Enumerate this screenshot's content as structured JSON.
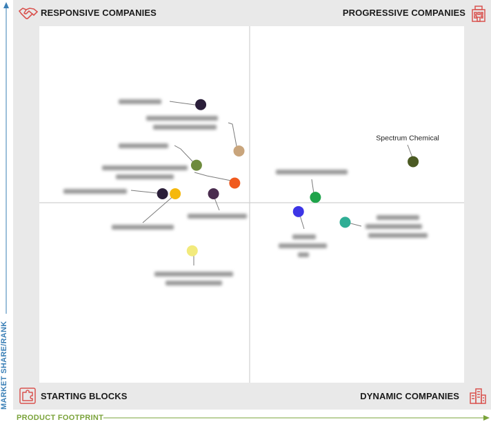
{
  "quadrants": {
    "top_left": "RESPONSIVE COMPANIES",
    "top_right": "PROGRESSIVE COMPANIES",
    "bottom_left": "STARTING BLOCKS",
    "bottom_right": "DYNAMIC COMPANIES"
  },
  "axes": {
    "y_label": "MARKET SHARE/RANK",
    "x_label": "PRODUCT FOOTPRINT"
  },
  "icons": {
    "top_left": "handshake-icon",
    "top_right": "building-icon",
    "bottom_left": "puzzle-blocks-icon",
    "bottom_right": "city-icon"
  },
  "colors": {
    "quadrant_icon": "#d9534f",
    "y_axis": "#3a7fb6",
    "x_axis": "#7aa33a"
  },
  "chart_data": {
    "type": "scatter",
    "xlim": [
      0,
      100
    ],
    "ylim": [
      0,
      100
    ],
    "grid": false,
    "legend": "none",
    "points": [
      {
        "label": "Spectrum Chemical",
        "x": 88,
        "y": 62,
        "color": "#4b5a23",
        "label_visible": true
      },
      {
        "label": "",
        "x": 38,
        "y": 78,
        "color": "#2b1f3a",
        "label_visible": false
      },
      {
        "label": "",
        "x": 47,
        "y": 65,
        "color": "#c9a57c",
        "label_visible": false
      },
      {
        "label": "",
        "x": 37,
        "y": 61,
        "color": "#6e8b3d",
        "label_visible": false
      },
      {
        "label": "",
        "x": 46,
        "y": 56,
        "color": "#f05a1e",
        "label_visible": false
      },
      {
        "label": "",
        "x": 29,
        "y": 53,
        "color": "#2b1f3a",
        "label_visible": false
      },
      {
        "label": "",
        "x": 32,
        "y": 53,
        "color": "#f5b80d",
        "label_visible": false
      },
      {
        "label": "",
        "x": 41,
        "y": 53,
        "color": "#4a2c4f",
        "label_visible": false
      },
      {
        "label": "",
        "x": 36,
        "y": 37,
        "color": "#f2ea7c",
        "label_visible": false
      },
      {
        "label": "",
        "x": 65,
        "y": 52,
        "color": "#1fa34a",
        "label_visible": false
      },
      {
        "label": "",
        "x": 61,
        "y": 48,
        "color": "#3d35e6",
        "label_visible": false
      },
      {
        "label": "",
        "x": 72,
        "y": 45,
        "color": "#2fae95",
        "label_visible": false
      }
    ]
  }
}
